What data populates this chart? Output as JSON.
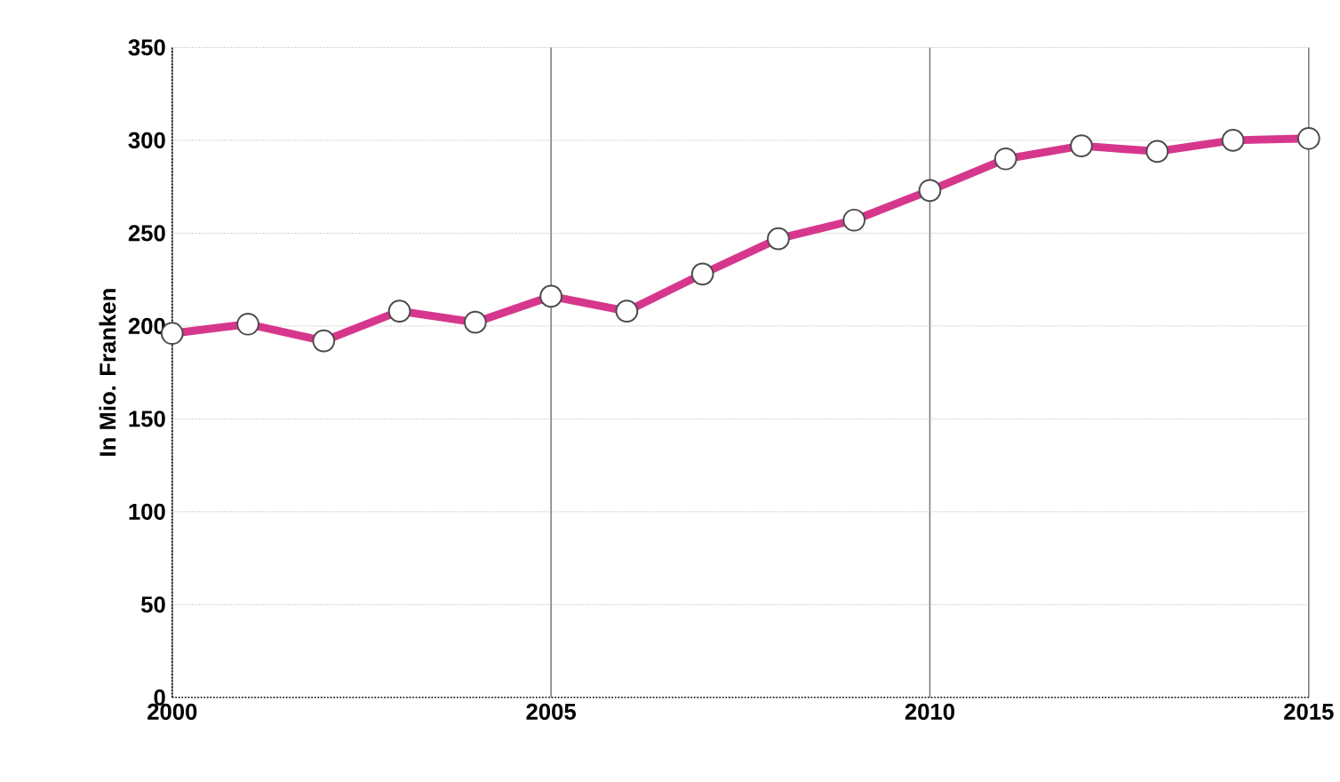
{
  "chart_data": {
    "type": "line",
    "ylabel": "In Mio. Franken",
    "x": [
      2000,
      2001,
      2002,
      2003,
      2004,
      2005,
      2006,
      2007,
      2008,
      2009,
      2010,
      2011,
      2012,
      2013,
      2014,
      2015
    ],
    "series": [
      {
        "color": "#d6378c",
        "values": [
          196,
          201,
          192,
          208,
          202,
          216,
          208,
          228,
          247,
          257,
          273,
          290,
          297,
          294,
          300,
          301
        ]
      }
    ],
    "xlim": [
      2000,
      2015
    ],
    "ylim": [
      0,
      350
    ],
    "xticks": [
      2000,
      2005,
      2010,
      2015
    ],
    "yticks": [
      0,
      50,
      100,
      150,
      200,
      250,
      300,
      350
    ],
    "grid": true,
    "marker": "circle",
    "line_style": "solid"
  }
}
